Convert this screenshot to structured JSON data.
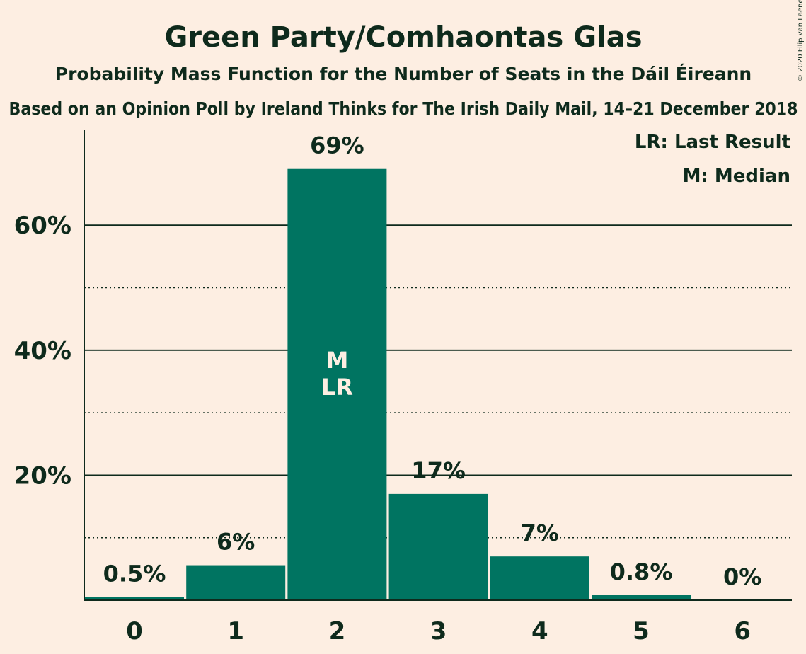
{
  "chart_data": {
    "type": "bar",
    "title": "Green Party/Comhaontas Glas",
    "subtitle": "Probability Mass Function for the Number of Seats in the Dáil Éireann",
    "subtitle2": "Based on an Opinion Poll by Ireland Thinks for The Irish Daily Mail, 14–21 December 2018",
    "copyright": "© 2020 Filip van Laenen",
    "legend": [
      "LR: Last Result",
      "M: Median"
    ],
    "legend_position": "top-right",
    "categories": [
      "0",
      "1",
      "2",
      "3",
      "4",
      "5",
      "6"
    ],
    "values": [
      0.5,
      5.6,
      69,
      17,
      7,
      0.8,
      0
    ],
    "value_labels": [
      "0.5%",
      "6%",
      "69%",
      "17%",
      "7%",
      "0.8%",
      "0%"
    ],
    "bar_inner_labels": {
      "2": [
        "M",
        "LR"
      ]
    },
    "ylim": [
      0,
      75
    ],
    "yticks_major": [
      20,
      40,
      60
    ],
    "yticks_major_labels": [
      "20%",
      "40%",
      "60%"
    ],
    "yticks_minor": [
      10,
      30,
      50
    ],
    "bar_color": "#007461",
    "background_color": "#FDEEE2",
    "text_color": "#0E2A1C"
  }
}
